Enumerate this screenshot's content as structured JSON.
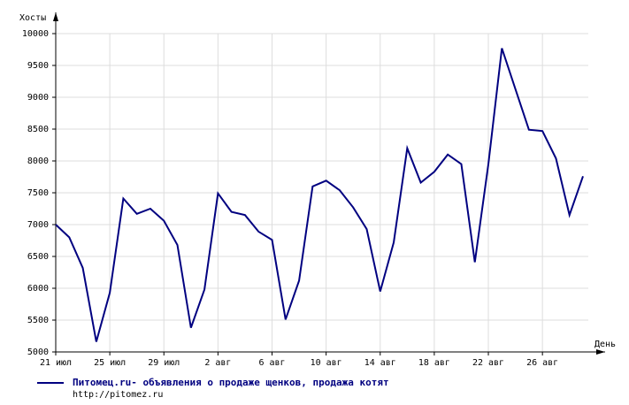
{
  "chart_data": {
    "type": "line",
    "y_label": "Хосты",
    "x_label": "День",
    "categories": [
      "21 июл",
      null,
      null,
      null,
      "25 июл",
      null,
      null,
      null,
      "29 июл",
      null,
      null,
      null,
      "2 авг",
      null,
      null,
      null,
      "6 авг",
      null,
      null,
      null,
      "10 авг",
      null,
      null,
      null,
      "14 авг",
      null,
      null,
      null,
      "18 авг",
      null,
      null,
      null,
      "22 авг",
      null,
      null,
      null,
      "26 авг",
      null,
      null,
      null
    ],
    "series": [
      {
        "name": "Питомец.ru- объявления о продаже щенков, продажа котят",
        "color": "#000080",
        "values": [
          7000,
          6800,
          6320,
          5160,
          5930,
          7410,
          7170,
          7250,
          7060,
          6680,
          5380,
          5980,
          7490,
          7200,
          7150,
          6890,
          6760,
          5510,
          6120,
          7600,
          7690,
          7540,
          7270,
          6930,
          5950,
          6720,
          8200,
          7660,
          7830,
          8100,
          7950,
          6410,
          7950,
          9770,
          9130,
          8490,
          8470,
          8040,
          7150,
          7760
        ]
      }
    ],
    "source": "http://pitomez.ru",
    "ylim": [
      5000,
      10000
    ],
    "yticks": [
      5000,
      5500,
      6000,
      6500,
      7000,
      7500,
      8000,
      8500,
      9000,
      9500,
      10000
    ],
    "grid": true
  }
}
